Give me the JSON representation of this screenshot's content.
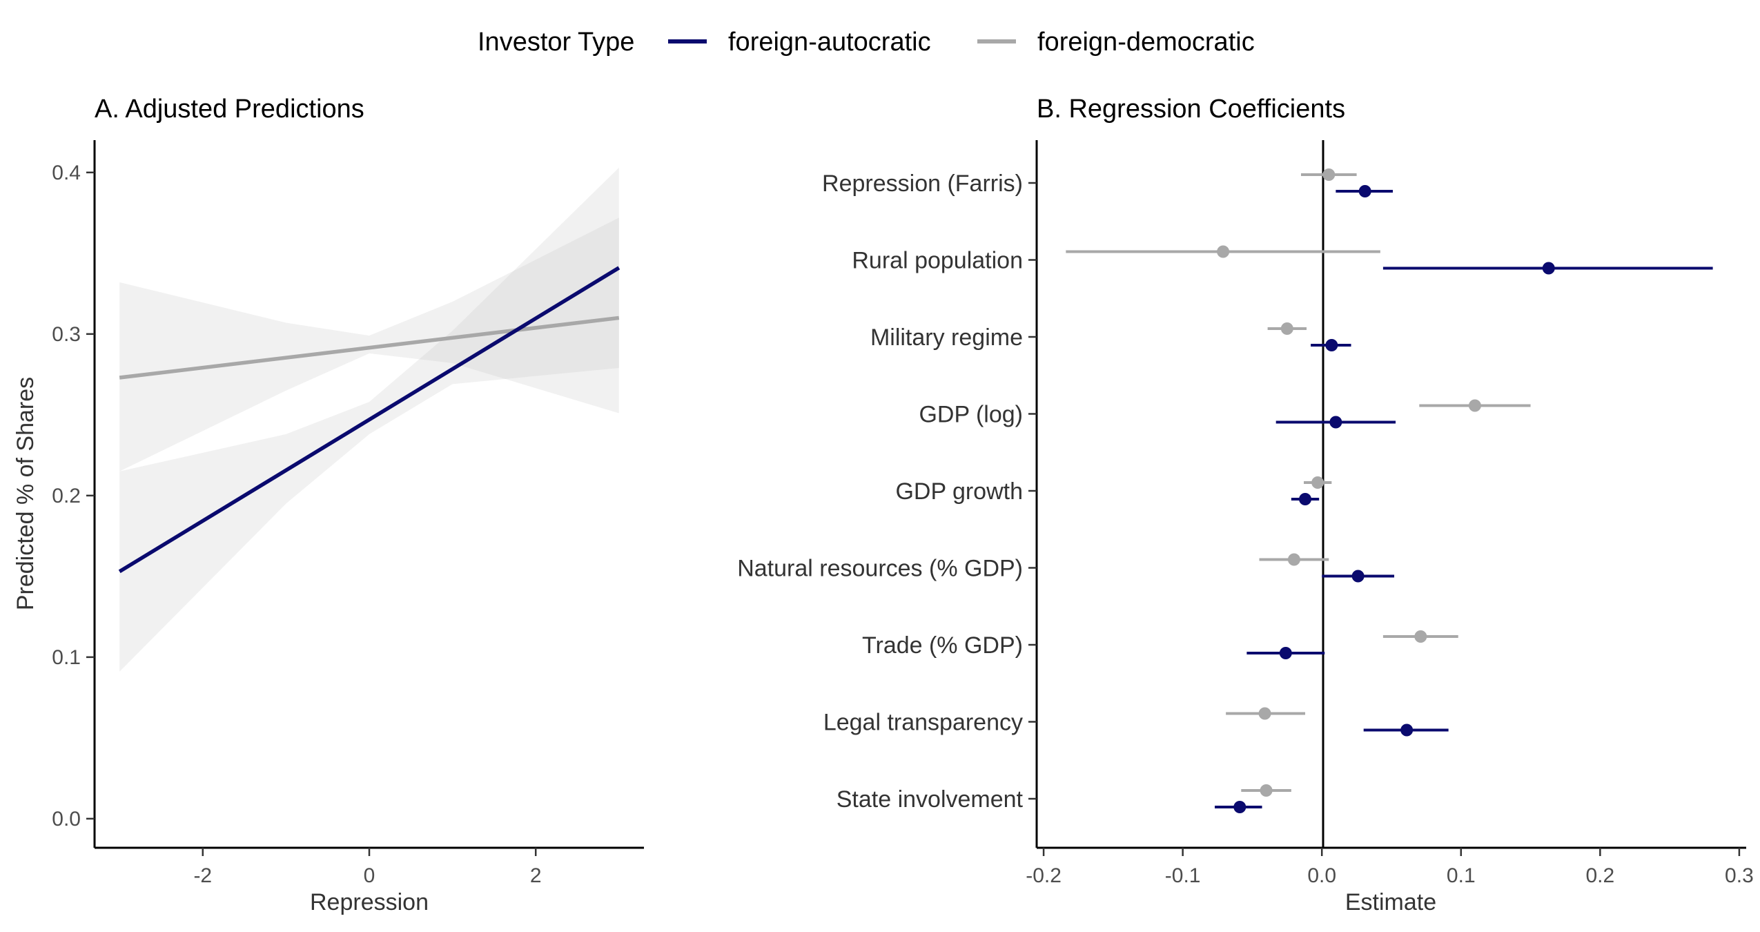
{
  "legend": {
    "title": "Investor Type",
    "entries": [
      {
        "label": "foreign-autocratic",
        "color": "#0a0a6e"
      },
      {
        "label": "foreign-democratic",
        "color": "#a8a8a8"
      }
    ]
  },
  "chart_data": [
    {
      "type": "line",
      "title": "A. Adjusted Predictions",
      "xlabel": "Repression",
      "ylabel": "Predicted % of Shares",
      "xlim": [
        -3.3,
        3.3
      ],
      "ylim": [
        -0.018,
        0.42
      ],
      "x_ticks": [
        -2,
        0,
        2
      ],
      "x_tick_labels": [
        "-2",
        "0",
        "2"
      ],
      "y_ticks": [
        0.0,
        0.1,
        0.2,
        0.3,
        0.4
      ],
      "y_tick_labels": [
        "0.0",
        "0.1",
        "0.2",
        "0.3",
        "0.4"
      ],
      "grid": false,
      "series": [
        {
          "name": "foreign-autocratic",
          "color": "#0a0a6e",
          "x": [
            -3,
            3
          ],
          "y": [
            0.153,
            0.341
          ],
          "ci_x": [
            -3,
            -1,
            0,
            1,
            3
          ],
          "ci_lower": [
            0.091,
            0.195,
            0.238,
            0.269,
            0.279
          ],
          "ci_upper": [
            0.215,
            0.238,
            0.258,
            0.302,
            0.403
          ]
        },
        {
          "name": "foreign-democratic",
          "color": "#a8a8a8",
          "x": [
            -3,
            3
          ],
          "y": [
            0.273,
            0.31
          ],
          "ci_x": [
            -3,
            -1,
            0,
            1,
            3
          ],
          "ci_lower": [
            0.215,
            0.265,
            0.288,
            0.282,
            0.251
          ],
          "ci_upper": [
            0.332,
            0.307,
            0.299,
            0.32,
            0.372
          ]
        }
      ]
    },
    {
      "type": "scatter",
      "subtype": "coefficient-plot",
      "title": "B. Regression Coefficients",
      "xlabel": "Estimate",
      "xlim": [
        -0.205,
        0.305
      ],
      "x_ticks": [
        -0.2,
        -0.1,
        0.0,
        0.1,
        0.2,
        0.3
      ],
      "x_tick_labels": [
        "-0.2",
        "-0.1",
        "0.0",
        "0.1",
        "0.2",
        "0.3"
      ],
      "reference_line": 0,
      "grid": false,
      "categories": [
        "Repression (Farris)",
        "Rural population",
        "Military regime",
        "GDP (log)",
        "GDP growth",
        "Natural resources (% GDP)",
        "Trade (% GDP)",
        "Legal transparency",
        "State involvement"
      ],
      "series": [
        {
          "name": "foreign-autocratic",
          "color": "#0a0a6e",
          "estimate": [
            0.031,
            0.163,
            0.007,
            0.01,
            -0.012,
            0.026,
            -0.026,
            0.061,
            -0.059
          ],
          "lower": [
            0.01,
            0.044,
            -0.008,
            -0.033,
            -0.022,
            0.0,
            -0.054,
            0.03,
            -0.077
          ],
          "upper": [
            0.051,
            0.281,
            0.021,
            0.053,
            -0.002,
            0.052,
            0.002,
            0.091,
            -0.043
          ]
        },
        {
          "name": "foreign-democratic",
          "color": "#a8a8a8",
          "estimate": [
            0.005,
            -0.071,
            -0.025,
            0.11,
            -0.003,
            -0.02,
            0.071,
            -0.041,
            -0.04
          ],
          "lower": [
            -0.015,
            -0.184,
            -0.039,
            0.07,
            -0.013,
            -0.045,
            0.044,
            -0.069,
            -0.058
          ],
          "upper": [
            0.025,
            0.042,
            -0.011,
            0.15,
            0.007,
            0.005,
            0.098,
            -0.012,
            -0.022
          ]
        }
      ]
    }
  ]
}
